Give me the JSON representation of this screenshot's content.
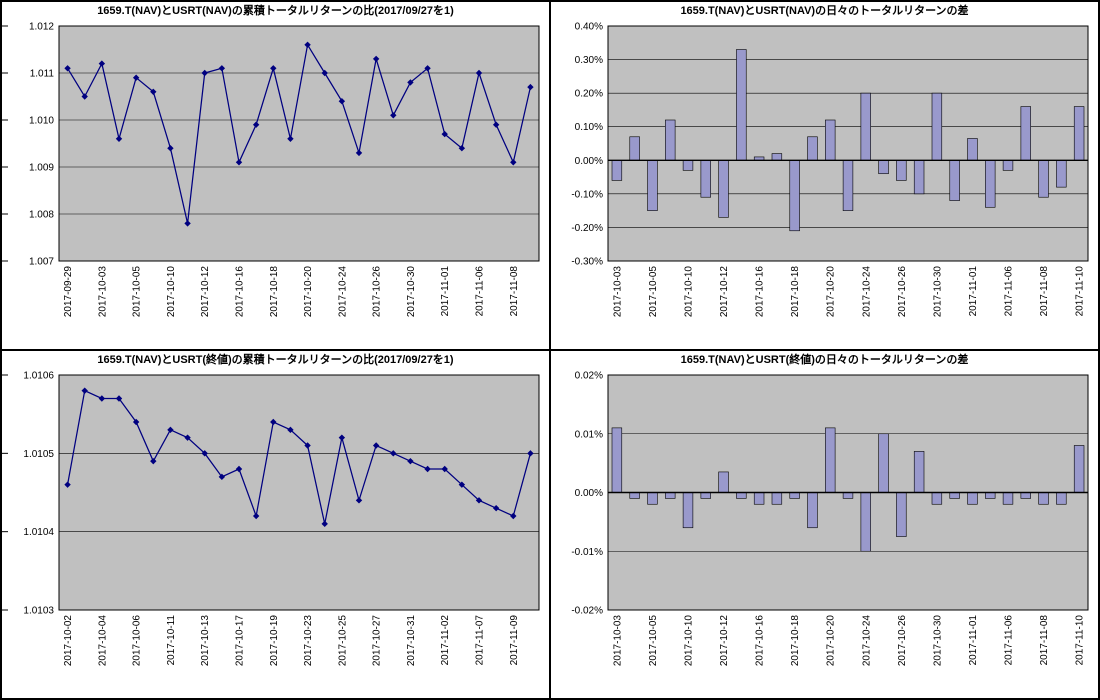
{
  "window": {
    "background": "#FFFFFF",
    "frame_color": "#000000"
  },
  "chart_data": [
    {
      "type": "line",
      "title": "1659.T(NAV)とUSRT(NAV)の累積トータルリターンの比(2017/09/27を1)",
      "plot_bg": "#C0C0C0",
      "line_color": "#000080",
      "marker": "diamond",
      "grid_color": "#000000",
      "y_min": 1.007,
      "y_max": 1.012,
      "y_tick_values": [
        1.012,
        1.011,
        1.01,
        1.009,
        1.008,
        1.007
      ],
      "y_tick_labels": [
        "1.012",
        "1.011",
        "1.010",
        "1.009",
        "1.008",
        "1.007"
      ],
      "x_tick_labels": [
        "2017-09-29",
        "2017-10-03",
        "2017-10-05",
        "2017-10-10",
        "2017-10-12",
        "2017-10-16",
        "2017-10-18",
        "2017-10-20",
        "2017-10-24",
        "2017-10-26",
        "2017-10-30",
        "2017-11-01",
        "2017-11-06",
        "2017-11-08"
      ],
      "points_per_label": 2,
      "values": [
        1.0111,
        1.0105,
        1.0112,
        1.0096,
        1.0109,
        1.0106,
        1.0094,
        1.0078,
        1.011,
        1.0111,
        1.0091,
        1.0099,
        1.0111,
        1.0096,
        1.0116,
        1.011,
        1.0104,
        1.0093,
        1.0113,
        1.0101,
        1.0108,
        1.0111,
        1.0097,
        1.0094,
        1.011,
        1.0099,
        1.0091,
        1.0107
      ]
    },
    {
      "type": "bar",
      "title": "1659.T(NAV)とUSRT(NAV)の日々のトータルリターンの差",
      "plot_bg": "#C0C0C0",
      "bar_color": "#9999CC",
      "grid_color": "#000000",
      "y_min": -0.3,
      "y_max": 0.4,
      "y_tick_values": [
        0.4,
        0.3,
        0.2,
        0.1,
        0.0,
        -0.1,
        -0.2,
        -0.3
      ],
      "y_tick_labels": [
        "0.40%",
        "0.30%",
        "0.20%",
        "0.10%",
        "0.00%",
        "-0.10%",
        "-0.20%",
        "-0.30%"
      ],
      "x_tick_labels": [
        "2017-10-03",
        "2017-10-05",
        "2017-10-10",
        "2017-10-12",
        "2017-10-16",
        "2017-10-18",
        "2017-10-20",
        "2017-10-24",
        "2017-10-26",
        "2017-10-30",
        "2017-11-01",
        "2017-11-06",
        "2017-11-08",
        "2017-11-10"
      ],
      "points_per_label": 2,
      "values": [
        -0.06,
        0.07,
        -0.15,
        0.12,
        -0.03,
        -0.11,
        -0.17,
        0.33,
        0.01,
        0.02,
        -0.21,
        0.07,
        0.12,
        -0.15,
        0.2,
        -0.04,
        -0.06,
        -0.1,
        0.2,
        -0.12,
        0.065,
        -0.14,
        -0.03,
        0.16,
        -0.11,
        -0.08,
        0.16
      ]
    },
    {
      "type": "line",
      "title": "1659.T(NAV)とUSRT(終値)の累積トータルリターンの比(2017/09/27を1)",
      "plot_bg": "#C0C0C0",
      "line_color": "#000080",
      "marker": "diamond",
      "grid_color": "#000000",
      "y_min": 1.0103,
      "y_max": 1.0106,
      "y_tick_values": [
        1.0106,
        1.0105,
        1.0104,
        1.0103
      ],
      "y_tick_labels": [
        "1.0106",
        "1.0105",
        "1.0104",
        "1.0103"
      ],
      "x_tick_labels": [
        "2017-10-02",
        "2017-10-04",
        "2017-10-06",
        "2017-10-11",
        "2017-10-13",
        "2017-10-17",
        "2017-10-19",
        "2017-10-23",
        "2017-10-25",
        "2017-10-27",
        "2017-10-31",
        "2017-11-02",
        "2017-11-07",
        "2017-11-09"
      ],
      "points_per_label": 2,
      "values": [
        1.01046,
        1.01058,
        1.01057,
        1.01057,
        1.01054,
        1.01049,
        1.01053,
        1.01052,
        1.0105,
        1.01047,
        1.01048,
        1.01042,
        1.01054,
        1.01053,
        1.01051,
        1.01041,
        1.01052,
        1.01044,
        1.01051,
        1.0105,
        1.01049,
        1.01048,
        1.01048,
        1.01046,
        1.01044,
        1.01043,
        1.01042,
        1.0105
      ]
    },
    {
      "type": "bar",
      "title": "1659.T(NAV)とUSRT(終値)の日々のトータルリターンの差",
      "plot_bg": "#C0C0C0",
      "bar_color": "#9999CC",
      "grid_color": "#000000",
      "y_min": -0.02,
      "y_max": 0.02,
      "y_tick_values": [
        0.02,
        0.01,
        0.0,
        -0.01,
        -0.02
      ],
      "y_tick_labels": [
        "0.02%",
        "0.01%",
        "0.00%",
        "-0.01%",
        "-0.02%"
      ],
      "x_tick_labels": [
        "2017-10-03",
        "2017-10-05",
        "2017-10-10",
        "2017-10-12",
        "2017-10-16",
        "2017-10-18",
        "2017-10-20",
        "2017-10-24",
        "2017-10-26",
        "2017-10-30",
        "2017-11-01",
        "2017-11-06",
        "2017-11-08",
        "2017-11-10"
      ],
      "points_per_label": 2,
      "values": [
        0.011,
        -0.001,
        -0.002,
        -0.001,
        -0.006,
        -0.001,
        0.0035,
        -0.001,
        -0.002,
        -0.002,
        -0.001,
        -0.006,
        0.011,
        -0.001,
        -0.01,
        0.01,
        -0.0075,
        0.007,
        -0.002,
        -0.001,
        -0.002,
        -0.001,
        -0.002,
        -0.001,
        -0.002,
        -0.002,
        0.008
      ]
    }
  ]
}
